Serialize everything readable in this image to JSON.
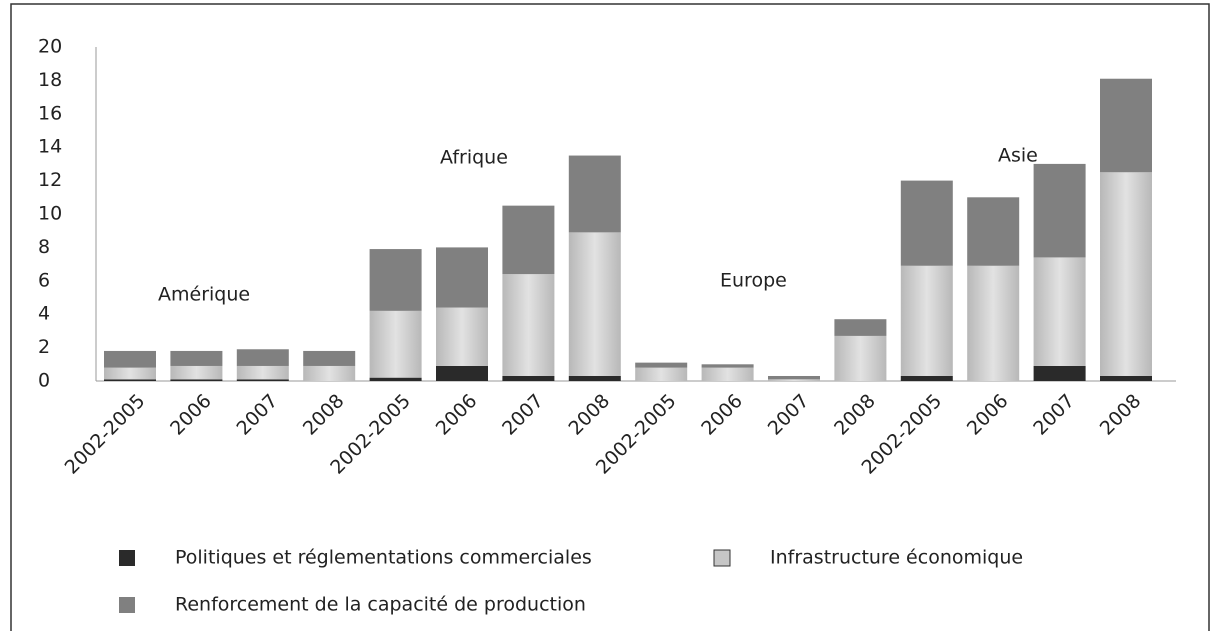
{
  "chart_data": {
    "type": "stacked_bar",
    "categories": [
      "2002-2005",
      "2006",
      "2007",
      "2008",
      "2002-2005",
      "2006",
      "2007",
      "2008",
      "2002-2005",
      "2006",
      "2007",
      "2008",
      "2002-2005",
      "2006",
      "2007",
      "2008"
    ],
    "group_labels": [
      "Amérique",
      "Afrique",
      "Europe",
      "Asie"
    ],
    "series": [
      {
        "name": "Politiques et réglementations commerciales",
        "color": "#2a2a2a",
        "values": [
          0.1,
          0.1,
          0.1,
          0,
          0.2,
          0.9,
          0.3,
          0.3,
          0,
          0,
          0,
          0,
          0.3,
          0,
          0.9,
          0.3
        ]
      },
      {
        "name": "Infrastructure économique",
        "color": "#c6c6c6",
        "values": [
          0.7,
          0.8,
          0.8,
          0.9,
          4.0,
          3.5,
          6.1,
          8.6,
          0.8,
          0.8,
          0.1,
          2.7,
          6.6,
          6.9,
          6.5,
          12.2
        ]
      },
      {
        "name": "Renforcement de la capacité de production",
        "color": "#808080",
        "values": [
          1.0,
          0.9,
          1.0,
          0.9,
          3.7,
          3.6,
          4.1,
          4.6,
          0.3,
          0.2,
          0.2,
          1.0,
          5.1,
          4.1,
          5.6,
          5.6
        ]
      }
    ],
    "ylim": [
      0,
      20
    ],
    "yticks": [
      0,
      2,
      4,
      6,
      8,
      10,
      12,
      14,
      16,
      18,
      20
    ],
    "grid": false
  }
}
